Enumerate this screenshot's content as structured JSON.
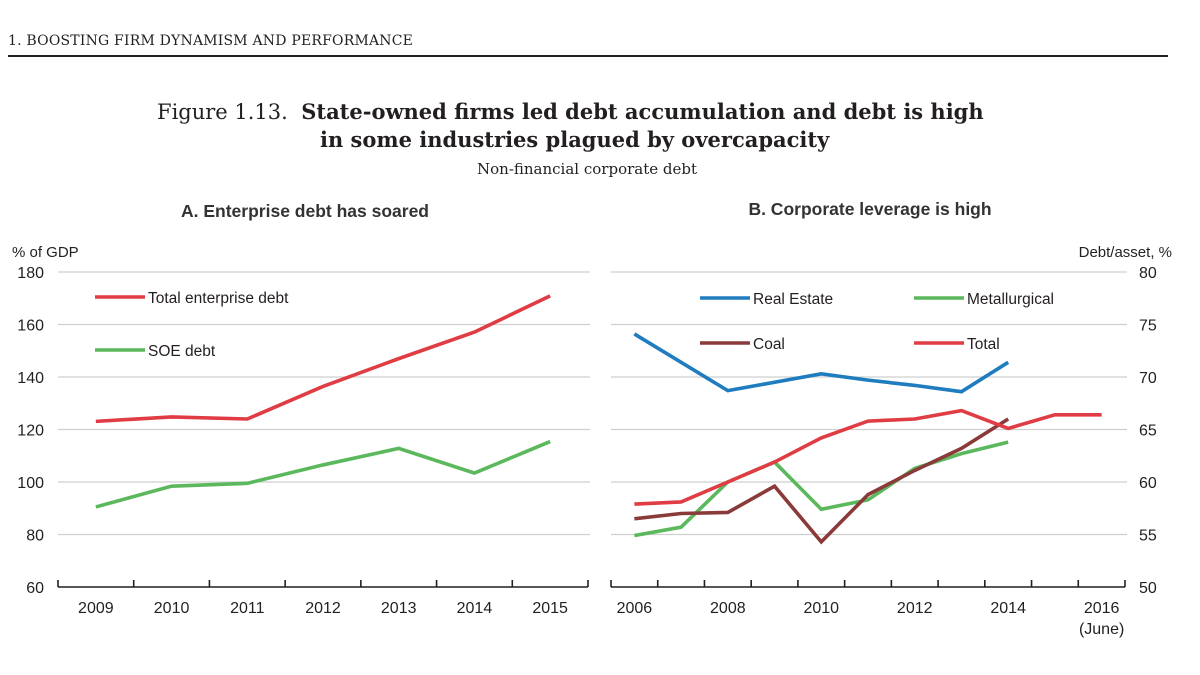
{
  "page": {
    "running_head": "1.   BOOSTING FIRM DYNAMISM AND PERFORMANCE",
    "figure_label": "Figure 1.13.",
    "figure_title_line1": "State-owned firms led debt accumulation and debt is high",
    "figure_title_line2": "in some industries plagued by overcapacity",
    "subtitle": "Non-financial corporate debt"
  },
  "chart_data": [
    {
      "type": "line",
      "title": "A. Enterprise debt has soared",
      "ylabel": "% of GDP",
      "xlabel": "",
      "ylim": [
        60,
        180
      ],
      "yticks": [
        60,
        80,
        100,
        120,
        140,
        160,
        180
      ],
      "grid": true,
      "legend_position": "top-left",
      "categories": [
        "2009",
        "2010",
        "2011",
        "2012",
        "2013",
        "2014",
        "2015"
      ],
      "series": [
        {
          "name": "Total enterprise debt",
          "color": "#e03c44",
          "values": [
            123.1,
            124.8,
            124.0,
            136.4,
            147.0,
            157.1,
            170.9
          ]
        },
        {
          "name": "SOE debt",
          "color": "#5cb85c",
          "values": [
            90.5,
            98.4,
            99.5,
            106.5,
            112.8,
            103.4,
            115.4
          ]
        }
      ]
    },
    {
      "type": "line",
      "title": "B. Corporate leverage is high",
      "ylabel": "Debt/asset, %",
      "xlabel": "",
      "ylim": [
        50,
        80
      ],
      "yticks": [
        50,
        55,
        60,
        65,
        70,
        75,
        80
      ],
      "y_axis_side": "right",
      "grid": true,
      "legend_position": "top",
      "categories": [
        "2006",
        "2007",
        "2008",
        "2009",
        "2010",
        "2011",
        "2012",
        "2013",
        "2014",
        "2015",
        "2016"
      ],
      "tick_labels": [
        "2006",
        "",
        "2008",
        "",
        "2010",
        "",
        "2012",
        "",
        "2014",
        "",
        "2016"
      ],
      "tick_sublabel_last": "(June)",
      "series": [
        {
          "name": "Real Estate",
          "color": "#1f7dbf",
          "values": [
            74.1,
            null,
            68.7,
            null,
            70.3,
            69.7,
            69.2,
            68.6,
            71.4,
            null,
            null
          ]
        },
        {
          "name": "Metallurgical",
          "color": "#5cb85c",
          "values": [
            54.9,
            55.7,
            60.0,
            61.9,
            57.4,
            58.3,
            61.3,
            62.7,
            63.8,
            null,
            null
          ]
        },
        {
          "name": "Coal",
          "color": "#8b3a3a",
          "values": [
            56.5,
            57.0,
            57.1,
            59.6,
            54.3,
            58.8,
            61.1,
            63.2,
            66.0,
            null,
            null
          ]
        },
        {
          "name": "Total",
          "color": "#e03c44",
          "values": [
            57.9,
            58.1,
            60.0,
            61.9,
            64.2,
            65.8,
            66.0,
            66.8,
            65.1,
            66.4,
            66.4
          ]
        }
      ],
      "legend_order": [
        "Real Estate",
        "Metallurgical",
        "Coal",
        "Total"
      ]
    }
  ]
}
